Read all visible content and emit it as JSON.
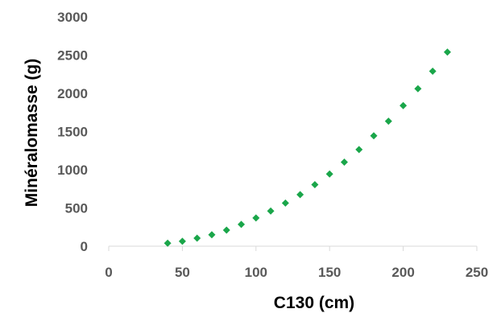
{
  "chart_data": {
    "type": "scatter",
    "title": "",
    "xlabel": "C130 (cm)",
    "ylabel": "Minéralomasse (g)",
    "xlim": [
      0,
      250
    ],
    "ylim": [
      0,
      3000
    ],
    "xticks": [
      0,
      50,
      100,
      150,
      200,
      250
    ],
    "yticks": [
      0,
      500,
      1000,
      1500,
      2000,
      2500,
      3000
    ],
    "grid": false,
    "legend": "none",
    "marker": "diamond",
    "color": "#1aa64a",
    "series": [
      {
        "x": [
          40,
          50,
          60,
          70,
          80,
          90,
          100,
          110,
          120,
          130,
          140,
          150,
          160,
          170,
          180,
          190,
          200,
          210,
          220,
          230
        ],
        "y": [
          40,
          65,
          105,
          150,
          210,
          285,
          370,
          460,
          565,
          675,
          805,
          945,
          1100,
          1265,
          1445,
          1635,
          1840,
          2060,
          2290,
          2540
        ]
      }
    ]
  }
}
